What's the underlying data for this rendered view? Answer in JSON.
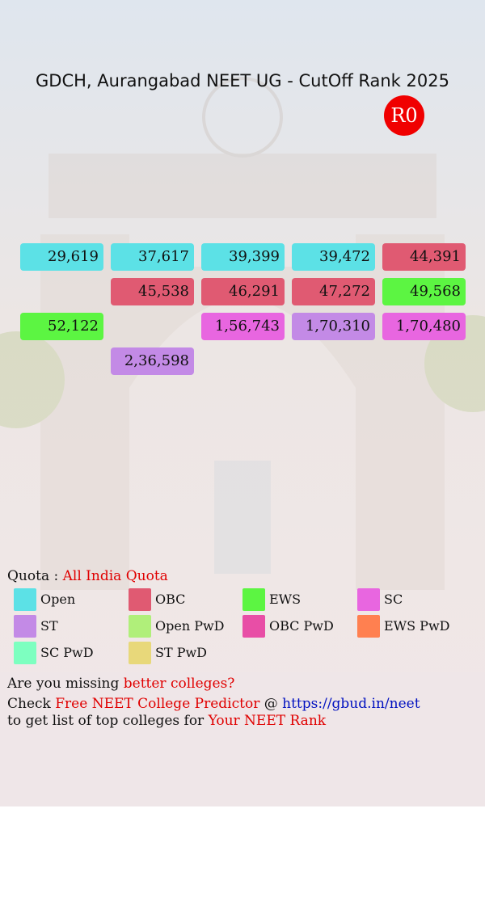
{
  "header": {
    "title": "GDCH, Aurangabad NEET UG - CutOff Rank 2025",
    "round": "R0"
  },
  "ranks": [
    [
      {
        "text": "29,619",
        "color": "#5ce1e6"
      },
      {
        "text": "37,617",
        "color": "#5ce1e6"
      },
      {
        "text": "39,399",
        "color": "#5ce1e6"
      },
      {
        "text": "39,472",
        "color": "#5ce1e6"
      },
      {
        "text": "44,391",
        "color": "#e05a72"
      }
    ],
    [
      null,
      {
        "text": "45,538",
        "color": "#e05a72"
      },
      {
        "text": "46,291",
        "color": "#e05a72"
      },
      {
        "text": "47,272",
        "color": "#e05a72"
      },
      {
        "text": "49,568",
        "color": "#5cf542"
      }
    ],
    [
      {
        "text": "52,122",
        "color": "#5cf542"
      },
      null,
      {
        "text": "1,56,743",
        "color": "#e866e0"
      },
      {
        "text": "1,70,310",
        "color": "#c38ae6"
      },
      {
        "text": "1,70,480",
        "color": "#e866e0"
      }
    ],
    [
      null,
      {
        "text": "2,36,598",
        "color": "#c38ae6"
      },
      null,
      null,
      null
    ]
  ],
  "quota": {
    "label": "Quota :",
    "value": "All India Quota"
  },
  "legend": [
    {
      "name": "Open",
      "color": "#5ce1e6"
    },
    {
      "name": "OBC",
      "color": "#e05a72"
    },
    {
      "name": "EWS",
      "color": "#5cf542"
    },
    {
      "name": "SC",
      "color": "#e866e0"
    },
    {
      "name": "ST",
      "color": "#c38ae6"
    },
    {
      "name": "Open PwD",
      "color": "#b0ef7a"
    },
    {
      "name": "OBC PwD",
      "color": "#e84ea6"
    },
    {
      "name": "EWS PwD",
      "color": "#ff8050"
    },
    {
      "name": "SC PwD",
      "color": "#7dffc0"
    },
    {
      "name": "ST PwD",
      "color": "#e8d87a"
    }
  ],
  "footer": {
    "line1": [
      "Are you missing",
      "better colleges?"
    ],
    "line2": [
      "Check",
      "Free NEET College Predictor",
      "@",
      "https://gbud.in/neet"
    ],
    "line3": [
      "to get list of top colleges for",
      "Your NEET Rank"
    ]
  }
}
